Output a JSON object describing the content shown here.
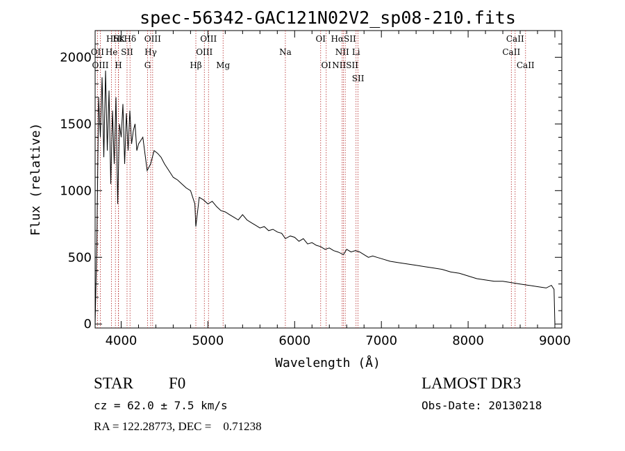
{
  "chart_data": {
    "type": "line",
    "title": "spec-56342-GAC121N02V2_sp08-210.fits",
    "xlabel": "Wavelength (Å)",
    "ylabel": "Flux (relative)",
    "xlim": [
      3700,
      9080
    ],
    "ylim": [
      -30,
      2200
    ],
    "xticks": [
      4000,
      5000,
      6000,
      7000,
      8000,
      9000
    ],
    "yticks": [
      0,
      500,
      1000,
      1500,
      2000
    ],
    "series": [
      {
        "name": "flux",
        "color": "#000000",
        "x": [
          3700,
          3720,
          3740,
          3760,
          3780,
          3800,
          3820,
          3840,
          3860,
          3880,
          3900,
          3920,
          3940,
          3960,
          3980,
          4000,
          4020,
          4040,
          4060,
          4080,
          4100,
          4120,
          4140,
          4160,
          4180,
          4200,
          4250,
          4300,
          4340,
          4380,
          4420,
          4460,
          4500,
          4550,
          4600,
          4650,
          4700,
          4750,
          4800,
          4850,
          4861,
          4900,
          4950,
          5000,
          5050,
          5100,
          5150,
          5200,
          5250,
          5300,
          5350,
          5400,
          5450,
          5500,
          5550,
          5600,
          5650,
          5700,
          5750,
          5800,
          5850,
          5893,
          5950,
          6000,
          6050,
          6100,
          6150,
          6200,
          6250,
          6300,
          6350,
          6400,
          6450,
          6500,
          6563,
          6600,
          6650,
          6700,
          6750,
          6800,
          6850,
          6900,
          6950,
          7000,
          7100,
          7200,
          7300,
          7400,
          7500,
          7600,
          7700,
          7800,
          7900,
          8000,
          8100,
          8200,
          8300,
          8400,
          8500,
          8600,
          8700,
          8800,
          8900,
          8960,
          8990,
          9000
        ],
        "y": [
          0,
          620,
          1700,
          1400,
          1850,
          1250,
          1900,
          1300,
          1750,
          1050,
          1600,
          1200,
          1700,
          900,
          1500,
          1400,
          1650,
          1200,
          1580,
          1300,
          1600,
          1350,
          1450,
          1500,
          1300,
          1350,
          1400,
          1150,
          1200,
          1300,
          1280,
          1250,
          1200,
          1150,
          1100,
          1080,
          1050,
          1020,
          1000,
          900,
          730,
          950,
          930,
          900,
          920,
          880,
          850,
          840,
          820,
          800,
          780,
          820,
          780,
          760,
          740,
          720,
          730,
          700,
          710,
          690,
          680,
          640,
          660,
          650,
          620,
          640,
          600,
          610,
          590,
          580,
          560,
          570,
          550,
          540,
          520,
          560,
          540,
          550,
          540,
          520,
          500,
          510,
          500,
          490,
          470,
          460,
          450,
          440,
          430,
          420,
          410,
          390,
          380,
          360,
          340,
          330,
          320,
          320,
          310,
          300,
          290,
          280,
          270,
          290,
          260,
          0
        ]
      }
    ],
    "lines": [
      {
        "label": "HδK",
        "wave": 3934,
        "row": 1
      },
      {
        "label": "Hε",
        "wave": 3970,
        "row": 1
      },
      {
        "label": "Hδ",
        "wave": 4102,
        "row": 1
      },
      {
        "label": "OII",
        "wave": 3727,
        "row": 2
      },
      {
        "label": "He",
        "wave": 3889,
        "row": 2
      },
      {
        "label": "SII",
        "wave": 4068,
        "row": 2
      },
      {
        "label": "OIII",
        "wave": 3760,
        "row": 3
      },
      {
        "label": "H",
        "wave": 3968,
        "row": 3
      },
      {
        "label": "OIII",
        "wave": 4363,
        "row": 1
      },
      {
        "label": "Hγ",
        "wave": 4340,
        "row": 2
      },
      {
        "label": "G",
        "wave": 4305,
        "row": 3
      },
      {
        "label": "Hβ",
        "wave": 4861,
        "row": 3
      },
      {
        "label": "OIII",
        "wave": 5007,
        "row": 1
      },
      {
        "label": "OIII",
        "wave": 4959,
        "row": 2
      },
      {
        "label": "Mg",
        "wave": 5175,
        "row": 3
      },
      {
        "label": "Na",
        "wave": 5893,
        "row": 2
      },
      {
        "label": "OI",
        "wave": 6300,
        "row": 1
      },
      {
        "label": "OI",
        "wave": 6364,
        "row": 3
      },
      {
        "label": "HαSII",
        "wave": 6563,
        "row": 1
      },
      {
        "label": "NII",
        "wave": 6548,
        "row": 2
      },
      {
        "label": "Li",
        "wave": 6708,
        "row": 2
      },
      {
        "label": "NIISII",
        "wave": 6583,
        "row": 3
      },
      {
        "label": "SII",
        "wave": 6731,
        "row": 4
      },
      {
        "label": "CaII",
        "wave": 8542,
        "row": 1
      },
      {
        "label": "CaII",
        "wave": 8498,
        "row": 2
      },
      {
        "label": "CaII",
        "wave": 8662,
        "row": 3
      }
    ]
  },
  "info": {
    "class": "STAR",
    "subclass": "F0",
    "survey": "LAMOST DR3",
    "cz": "cz = 62.0 ± 7.5 km/s",
    "obs_date": "Obs-Date: 20130218",
    "radec": "RA = 122.28773, DEC =    0.71238"
  }
}
